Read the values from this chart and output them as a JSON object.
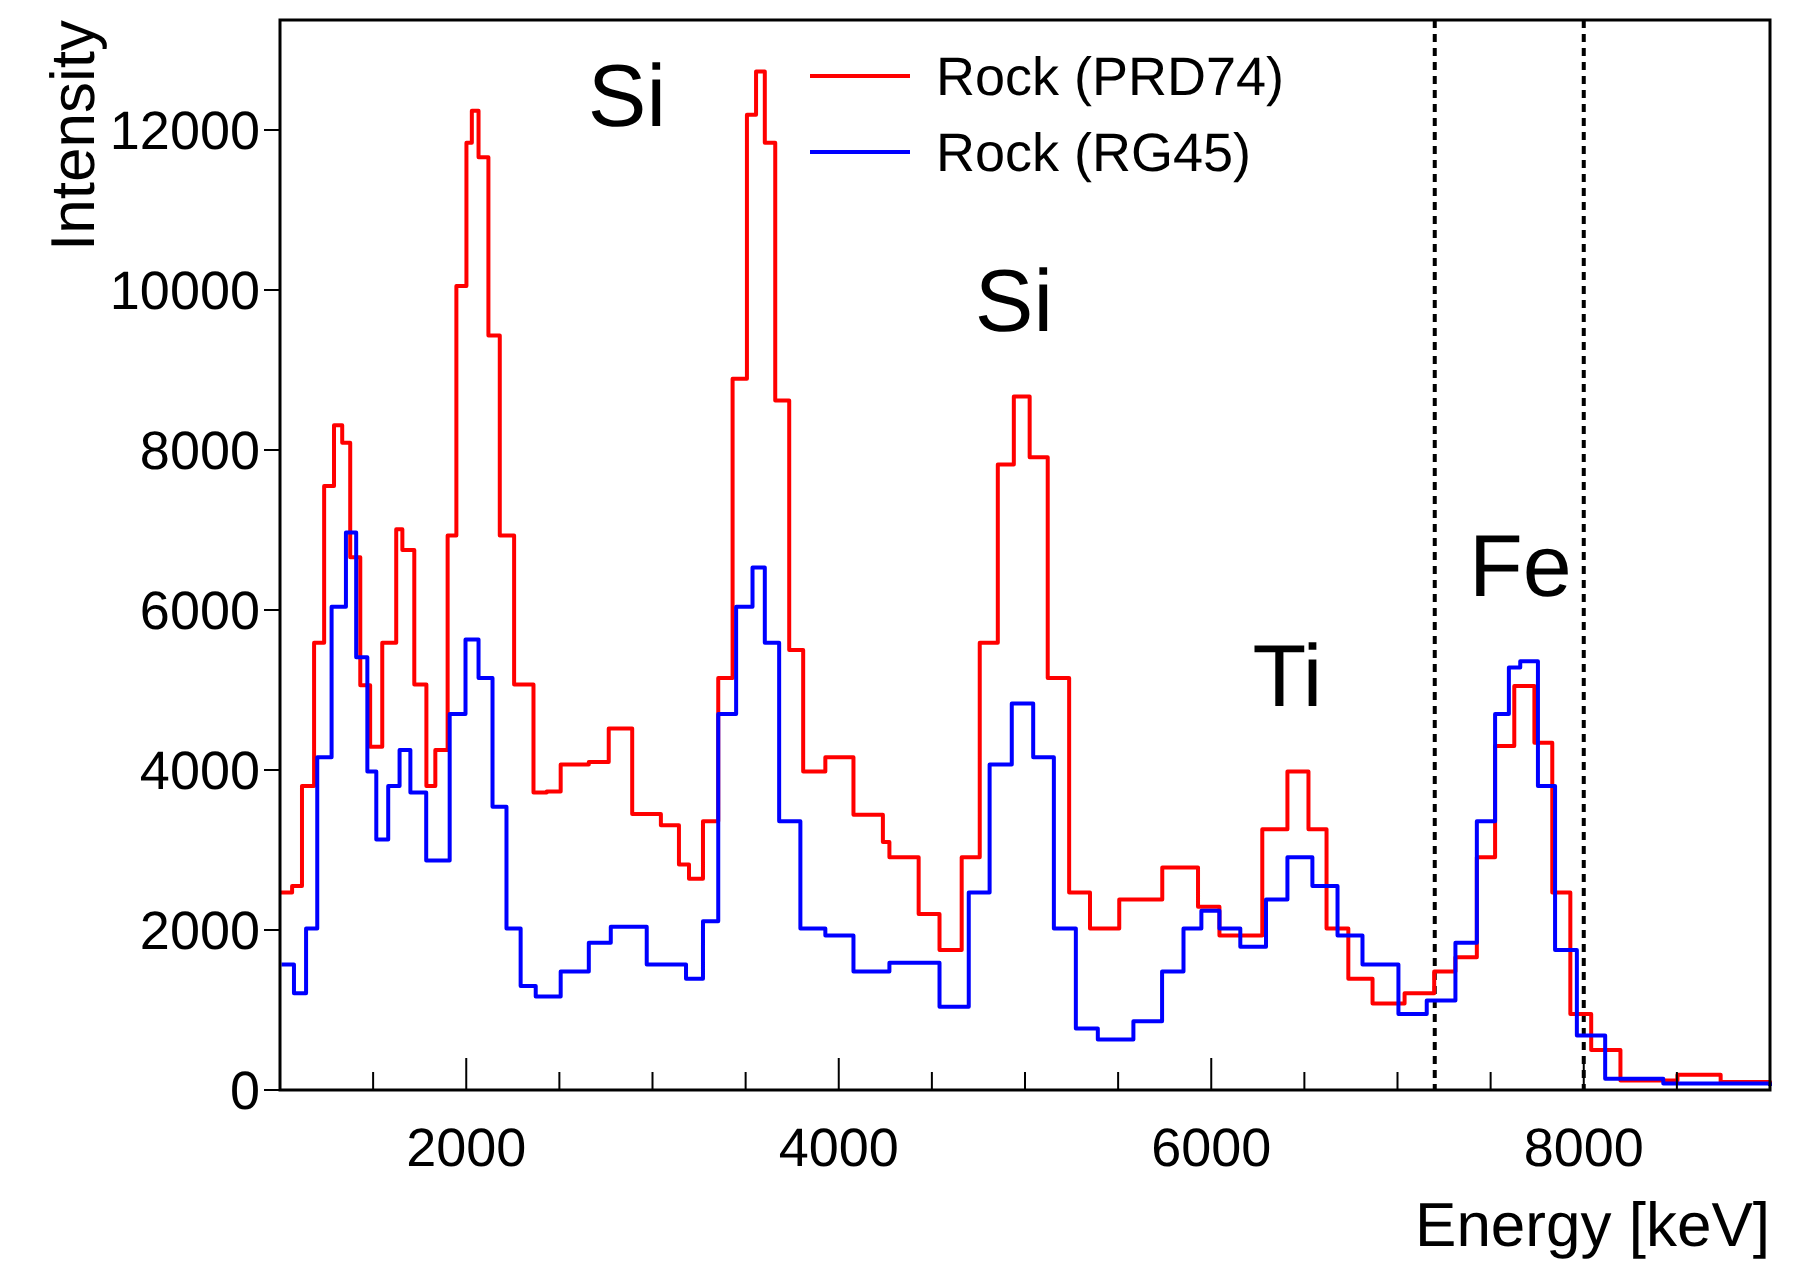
{
  "chart_data": {
    "type": "step",
    "xlabel": "Energy [keV]",
    "ylabel": "Intensity",
    "xlim": [
      1000,
      9000
    ],
    "ylim": [
      0,
      13375
    ],
    "xticks": [
      {
        "value": 1500,
        "label": null
      },
      2000,
      {
        "value": 2500,
        "label": null
      },
      {
        "value": 3000,
        "label": null
      },
      {
        "value": 3500,
        "label": null
      },
      4000,
      {
        "value": 4500,
        "label": null
      },
      {
        "value": 5000,
        "label": null
      },
      {
        "value": 5500,
        "label": null
      },
      6000,
      {
        "value": 6500,
        "label": null
      },
      {
        "value": 7000,
        "label": null
      },
      {
        "value": 7500,
        "label": null
      },
      8000,
      {
        "value": 8500,
        "label": null
      }
    ],
    "yticks": [
      0,
      2000,
      4000,
      6000,
      8000,
      10000,
      12000
    ],
    "grid": false,
    "legend": "top",
    "line_style": "solid",
    "marker": "none",
    "series": [
      {
        "name": "Rock (PRD74)",
        "color": "#ff0000",
        "x": [
          1000,
          1065,
          1118,
          1183,
          1237,
          1290,
          1334,
          1377,
          1431,
          1484,
          1549,
          1624,
          1657,
          1721,
          1786,
          1834,
          1900,
          1947,
          2001,
          2030,
          2066,
          2119,
          2180,
          2257,
          2361,
          2432,
          2507,
          2658,
          2765,
          2891,
          3045,
          3142,
          3196,
          3271,
          3353,
          3430,
          3507,
          3556,
          3603,
          3659,
          3734,
          3809,
          3928,
          4079,
          4237,
          4272,
          4429,
          4541,
          4660,
          4757,
          4854,
          4940,
          5025,
          5122,
          5237,
          5349,
          5506,
          5737,
          5929,
          6044,
          6140,
          6274,
          6409,
          6522,
          6619,
          6736,
          6866,
          7038,
          7197,
          7311,
          7426,
          7524,
          7627,
          7735,
          7831,
          7928,
          8040,
          8197,
          8503,
          8735,
          9000
        ],
        "values": [
          2470,
          2550,
          3800,
          5590,
          7550,
          8310,
          8090,
          6660,
          5060,
          4290,
          5590,
          7010,
          6750,
          5070,
          3800,
          4250,
          6930,
          10050,
          11840,
          12240,
          11660,
          9430,
          6930,
          5070,
          3720,
          3730,
          4070,
          4100,
          4520,
          3450,
          3310,
          2820,
          2640,
          3360,
          5150,
          8890,
          12190,
          12730,
          11840,
          8620,
          5500,
          3980,
          4160,
          3440,
          3100,
          2910,
          2200,
          1750,
          2910,
          5590,
          7820,
          8670,
          7910,
          5150,
          2470,
          2020,
          2380,
          2780,
          2290,
          1930,
          1930,
          3260,
          3980,
          3260,
          2020,
          1390,
          1080,
          1210,
          1480,
          1660,
          2910,
          4300,
          5050,
          4340,
          2470,
          950,
          500,
          120,
          190,
          100,
          80
        ]
      },
      {
        "name": "Rock (RG45)",
        "color": "#0000ff",
        "x": [
          1008,
          1075,
          1140,
          1200,
          1277,
          1354,
          1409,
          1469,
          1517,
          1581,
          1642,
          1700,
          1785,
          1834,
          1911,
          1996,
          2066,
          2141,
          2216,
          2292,
          2373,
          2507,
          2658,
          2776,
          2969,
          3180,
          3271,
          3353,
          3449,
          3537,
          3603,
          3680,
          3794,
          3928,
          4079,
          4272,
          4541,
          4698,
          4810,
          4929,
          5044,
          5155,
          5273,
          5391,
          5582,
          5736,
          5851,
          5947,
          6044,
          6156,
          6294,
          6409,
          6543,
          6678,
          6812,
          7005,
          7157,
          7311,
          7426,
          7524,
          7598,
          7659,
          7754,
          7846,
          7963,
          8115,
          8427,
          9000
        ],
        "values": [
          1570,
          1210,
          2020,
          4160,
          6040,
          6970,
          5410,
          3980,
          3130,
          3800,
          4250,
          3720,
          2870,
          2870,
          4700,
          5630,
          5150,
          3540,
          2020,
          1300,
          1170,
          1480,
          1840,
          2040,
          1570,
          1390,
          2110,
          4700,
          6040,
          6530,
          5590,
          3360,
          2020,
          1930,
          1480,
          1590,
          1040,
          2470,
          4070,
          4830,
          4160,
          2020,
          770,
          630,
          860,
          1480,
          2020,
          2240,
          2020,
          1790,
          2380,
          2910,
          2550,
          1930,
          1570,
          950,
          1120,
          1840,
          3360,
          4700,
          5280,
          5360,
          3800,
          1750,
          680,
          140,
          80,
          50
        ]
      }
    ],
    "ref_lines": [
      {
        "axis": "x",
        "value": 7200,
        "color": "#000000",
        "line_style": "dashed"
      },
      {
        "axis": "x",
        "value": 8000,
        "color": "#000000",
        "line_style": "dashed"
      }
    ],
    "annotations": [
      {
        "text": "Si",
        "x": 3556,
        "y": 12730
      },
      {
        "text": "Si",
        "x": 4940,
        "y": 8670
      },
      {
        "text": "Ti",
        "x": 6409,
        "y": 3980
      },
      {
        "text": "Fe",
        "x": 7659,
        "y": 5360
      }
    ]
  }
}
